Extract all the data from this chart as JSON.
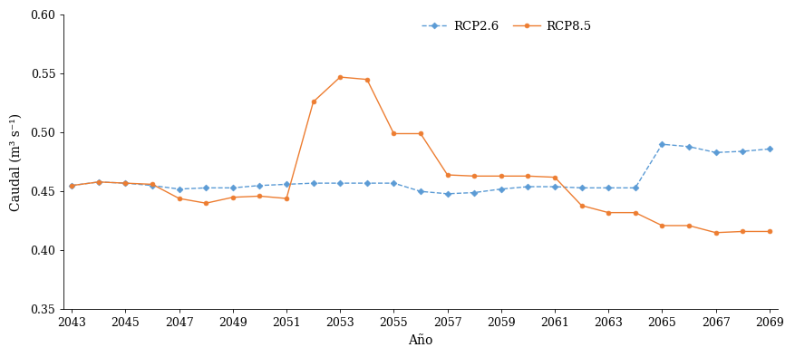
{
  "years": [
    2043,
    2044,
    2045,
    2046,
    2047,
    2048,
    2049,
    2050,
    2051,
    2052,
    2053,
    2054,
    2055,
    2056,
    2057,
    2058,
    2059,
    2060,
    2061,
    2062,
    2063,
    2064,
    2065,
    2066,
    2067,
    2068,
    2069
  ],
  "rcp26": [
    0.455,
    0.458,
    0.457,
    0.455,
    0.452,
    0.453,
    0.453,
    0.455,
    0.456,
    0.457,
    0.457,
    0.457,
    0.457,
    0.45,
    0.448,
    0.449,
    0.452,
    0.454,
    0.454,
    0.453,
    0.453,
    0.453,
    0.49,
    0.488,
    0.483,
    0.484,
    0.486
  ],
  "rcp85": [
    0.455,
    0.458,
    0.457,
    0.456,
    0.444,
    0.44,
    0.445,
    0.446,
    0.444,
    0.526,
    0.547,
    0.545,
    0.499,
    0.499,
    0.464,
    0.463,
    0.463,
    0.463,
    0.462,
    0.438,
    0.432,
    0.432,
    0.421,
    0.421,
    0.415,
    0.416,
    0.416
  ],
  "rcp26_color": "#5b9bd5",
  "rcp85_color": "#ed7d31",
  "rcp26_label": "RCP2.6",
  "rcp85_label": "RCP8.5",
  "xlabel": "Año",
  "ylabel": "Caudal (m³ s⁻¹)",
  "ylim": [
    0.35,
    0.6
  ],
  "yticks": [
    0.35,
    0.4,
    0.45,
    0.5,
    0.55,
    0.6
  ],
  "xlim": [
    2043,
    2069
  ],
  "xticks": [
    2043,
    2045,
    2047,
    2049,
    2051,
    2053,
    2055,
    2057,
    2059,
    2061,
    2063,
    2065,
    2067,
    2069
  ],
  "background_color": "#ffffff"
}
